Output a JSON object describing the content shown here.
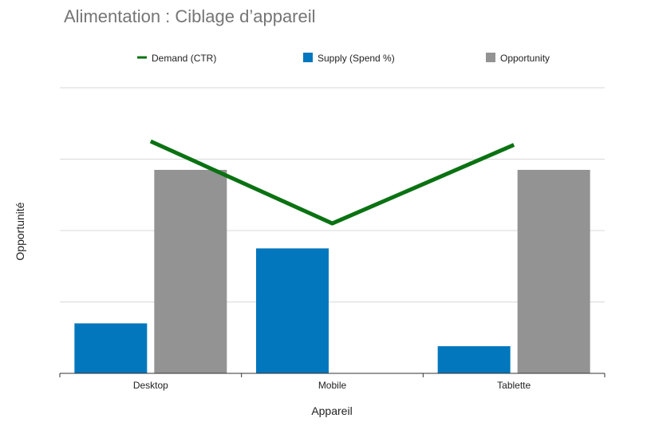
{
  "chart_data": {
    "type": "bar",
    "title": "Alimentation : Ciblage d’appareil",
    "xlabel": "Appareil",
    "ylabel": "Opportunité",
    "categories": [
      "Desktop",
      "Mobile",
      "Tablette"
    ],
    "ylim": [
      0,
      4
    ],
    "grid": true,
    "legend_position": "top",
    "series": [
      {
        "name": "Supply (Spend %)",
        "type": "bar",
        "color": "#0277bd",
        "values": [
          0.7,
          1.75,
          0.38
        ]
      },
      {
        "name": "Opportunity",
        "type": "bar",
        "color": "#939393",
        "values": [
          2.85,
          0.0,
          2.85
        ]
      },
      {
        "name": "Demand (CTR)",
        "type": "line",
        "color": "#0a7212",
        "values": [
          3.25,
          2.1,
          3.2
        ]
      }
    ]
  }
}
